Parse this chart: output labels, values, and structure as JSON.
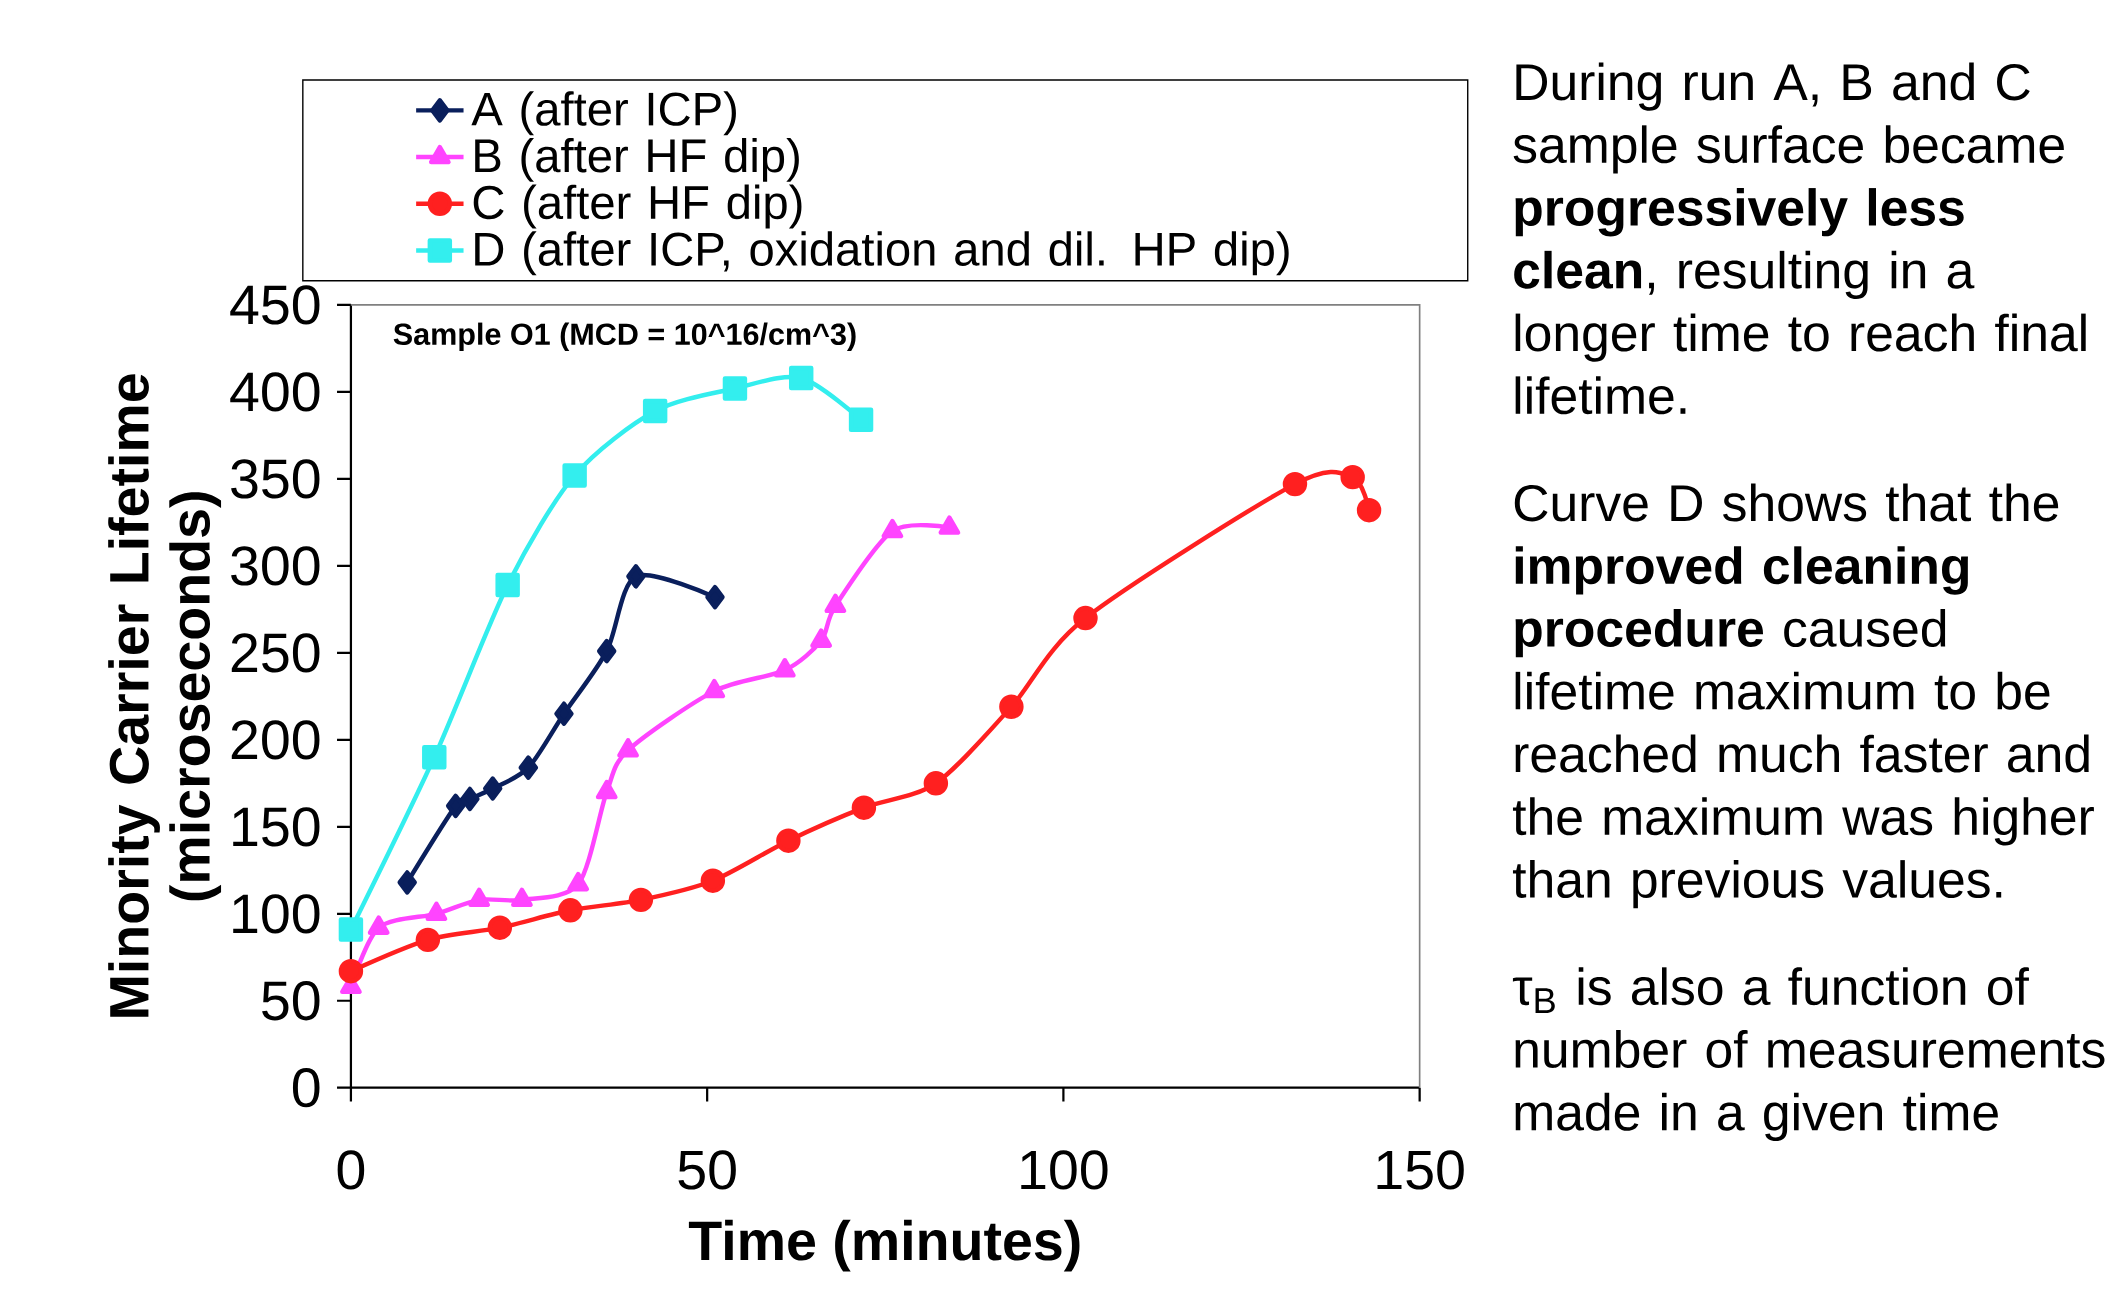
{
  "chart_data": {
    "type": "line",
    "xlabel": "Time (minutes)",
    "ylabel": "Minority Carrier Lifetime (microseconds)",
    "xlim": [
      0,
      150
    ],
    "ylim": [
      0,
      450
    ],
    "xticks": [
      0,
      50,
      100,
      150
    ],
    "yticks": [
      0,
      50,
      100,
      150,
      200,
      250,
      300,
      350,
      400,
      450
    ],
    "grid": false,
    "legend": "top",
    "series": [
      {
        "name": "A (after ICP)",
        "color": "#0a1f5c",
        "marker": "diamond",
        "x": [
          7.9,
          14.7,
          16.7,
          19.9,
          24.9,
          29.9,
          35.9,
          40,
          51.1
        ],
        "values": [
          118,
          162,
          166,
          172,
          184,
          215,
          251,
          294,
          282
        ]
      },
      {
        "name": "B (after HF dip)",
        "color": "#ff44ff",
        "marker": "triangle",
        "x": [
          0,
          3.9,
          12,
          18,
          24,
          31.9,
          35.9,
          38.9,
          51,
          60.9,
          66,
          68,
          76,
          84
        ],
        "values": [
          58,
          92,
          100,
          108,
          108,
          117,
          170,
          194,
          228,
          240,
          257,
          277,
          320,
          322
        ]
      },
      {
        "name": "C (after HF dip)",
        "color": "#ff2020",
        "marker": "circle",
        "x": [
          0,
          10.8,
          20.9,
          30.8,
          40.7,
          50.8,
          61.4,
          72,
          82.1,
          92.7,
          103.1,
          132.5,
          140.6,
          142.9
        ],
        "values": [
          67,
          85,
          92,
          102,
          108,
          119,
          142,
          161,
          175,
          219,
          270,
          347,
          351,
          332
        ]
      },
      {
        "name": "D (after ICP, oxidation and dil. HP dip)",
        "color": "#33eeee",
        "marker": "square",
        "x": [
          0,
          11.7,
          22,
          31.4,
          42.7,
          53.9,
          63.2,
          71.6
        ],
        "values": [
          91,
          190,
          289,
          352,
          389,
          402,
          408,
          384
        ]
      }
    ],
    "annotations": [
      "Sample O1 (MCD = 10^16/cm^3)",
      "During run A, B and C sample surface became **progressively less clean**, resulting in a longer time to reach final lifetime.",
      "Curve D shows that the **improved cleaning procedure** caused lifetime maximum to be reached much faster and the maximum was higher than previous values.",
      "τ$_{B}$ is also a function of number of measurements made in a given time"
    ]
  }
}
